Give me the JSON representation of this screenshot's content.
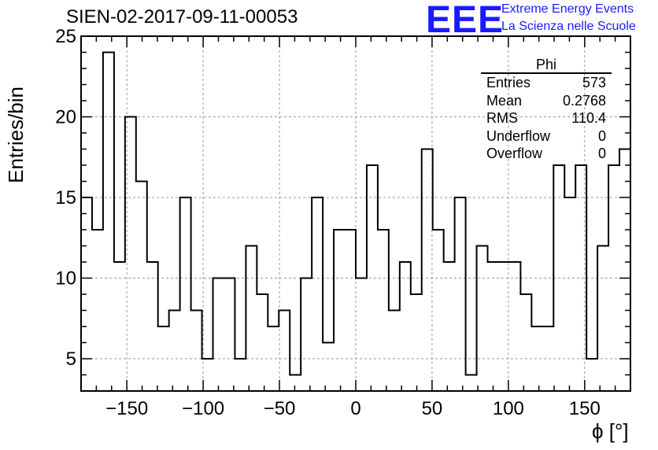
{
  "title": "SIEN-02-2017-09-11-00053",
  "logo": {
    "mark": "EEE",
    "line1": "Extreme Energy Events",
    "line2": "La Scienza nelle Scuole",
    "color": "#1a1aff"
  },
  "stats_box": {
    "name": "Phi",
    "rows": [
      {
        "label": "Entries",
        "value": "573"
      },
      {
        "label": "Mean",
        "value": "0.2768"
      },
      {
        "label": "RMS",
        "value": "110.4"
      },
      {
        "label": "Underflow",
        "value": "0"
      },
      {
        "label": "Overflow",
        "value": "0"
      }
    ]
  },
  "chart_data": {
    "type": "bar",
    "style": "step-histogram",
    "xlabel": "ϕ [°]",
    "ylabel": "Entries/bin",
    "xlim": [
      -180,
      180
    ],
    "ylim": [
      3,
      25
    ],
    "bin_width": 7.2,
    "x_ticks": [
      -150,
      -100,
      -50,
      0,
      50,
      100,
      150
    ],
    "x_tick_labels": [
      "−150",
      "−100",
      "−50",
      "0",
      "50",
      "100",
      "150"
    ],
    "y_ticks": [
      5,
      10,
      15,
      20,
      25
    ],
    "y_tick_labels": [
      "5",
      "10",
      "15",
      "20",
      "25"
    ],
    "grid": true,
    "series": [
      {
        "values": [
          15,
          13,
          24,
          11,
          20,
          16,
          11,
          7,
          8,
          15,
          8,
          5,
          10,
          10,
          5,
          12,
          9,
          7,
          8,
          4,
          10,
          15,
          6,
          13,
          13,
          10,
          17,
          13,
          8,
          11,
          9,
          18,
          13,
          11,
          15,
          4,
          12,
          11,
          11,
          11,
          9,
          7,
          7,
          17,
          15,
          17,
          5,
          12,
          17,
          18
        ]
      }
    ],
    "line_color": "#000000"
  }
}
